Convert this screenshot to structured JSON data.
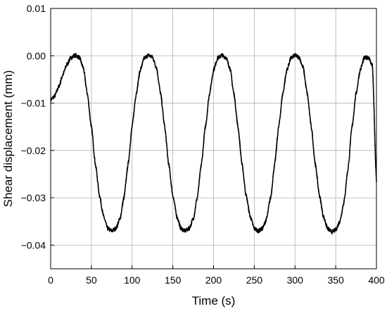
{
  "chart_data": {
    "type": "line",
    "title": "",
    "xlabel": "Time (s)",
    "ylabel": "Shear displacement (mm)",
    "xlim": [
      0,
      400
    ],
    "ylim": [
      -0.045,
      0.01
    ],
    "xticks": [
      0,
      50,
      100,
      150,
      200,
      250,
      300,
      350,
      400
    ],
    "xtick_labels": [
      "0",
      "50",
      "100",
      "150",
      "200",
      "250",
      "300",
      "350",
      "400"
    ],
    "yticks": [
      0.01,
      0.0,
      -0.01,
      -0.02,
      -0.03,
      -0.04
    ],
    "ytick_labels": [
      "0.01",
      "0.00",
      "−0.01",
      "−0.02",
      "−0.03",
      "−0.04"
    ],
    "grid": true,
    "legend": "none",
    "line_color": "#000000",
    "series": [
      {
        "x": [
          0,
          5,
          10,
          15,
          20,
          25,
          30,
          35,
          40,
          45,
          50,
          55,
          60,
          65,
          70,
          75,
          80,
          85,
          90,
          95,
          100,
          105,
          110,
          115,
          120,
          125,
          130,
          135,
          140,
          145,
          150,
          155,
          160,
          165,
          170,
          175,
          180,
          185,
          190,
          195,
          200,
          205,
          210,
          215,
          220,
          225,
          230,
          235,
          240,
          245,
          250,
          255,
          260,
          265,
          270,
          275,
          280,
          285,
          290,
          295,
          300,
          305,
          310,
          315,
          320,
          325,
          330,
          335,
          340,
          345,
          350,
          355,
          360,
          365,
          370,
          375,
          380,
          385,
          390,
          395,
          400
        ],
        "y": [
          -0.0093,
          -0.0085,
          -0.0065,
          -0.004,
          -0.0018,
          -0.0004,
          0.0001,
          -0.0003,
          -0.0025,
          -0.008,
          -0.015,
          -0.023,
          -0.0295,
          -0.034,
          -0.0365,
          -0.037,
          -0.0365,
          -0.0345,
          -0.03,
          -0.023,
          -0.015,
          -0.008,
          -0.003,
          -0.0005,
          0.0001,
          -0.0003,
          -0.0025,
          -0.008,
          -0.015,
          -0.023,
          -0.0295,
          -0.034,
          -0.0365,
          -0.037,
          -0.0365,
          -0.0345,
          -0.03,
          -0.023,
          -0.015,
          -0.008,
          -0.003,
          -0.0005,
          0.0001,
          -0.0003,
          -0.0025,
          -0.008,
          -0.015,
          -0.023,
          -0.0295,
          -0.034,
          -0.0365,
          -0.037,
          -0.0365,
          -0.0345,
          -0.03,
          -0.023,
          -0.015,
          -0.008,
          -0.003,
          -0.0005,
          0.0001,
          -0.0003,
          -0.0025,
          -0.008,
          -0.015,
          -0.023,
          -0.0295,
          -0.034,
          -0.0365,
          -0.0372,
          -0.0368,
          -0.035,
          -0.031,
          -0.024,
          -0.015,
          -0.008,
          -0.003,
          -0.0005,
          -0.0003,
          -0.002,
          -0.0265
        ]
      }
    ]
  }
}
